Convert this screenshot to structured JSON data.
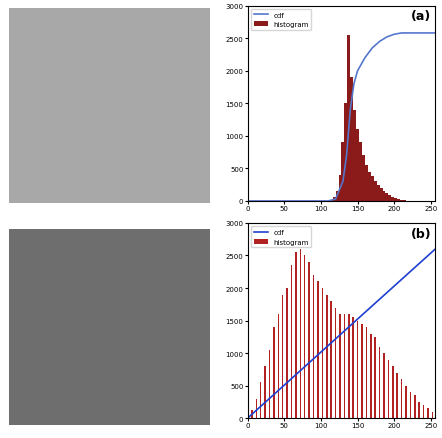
{
  "chart_data": [
    {
      "type": "histogram",
      "annotation": "(a)",
      "legend": "upper left",
      "xlim": [
        0,
        256
      ],
      "xticks": [
        0,
        50,
        100,
        150,
        200,
        250
      ],
      "ylim": [
        0,
        3000
      ],
      "yticks": [
        0,
        500,
        1000,
        1500,
        2000,
        2500,
        3000
      ],
      "series": [
        {
          "name": "cdf",
          "type": "line",
          "color": "#5577cc",
          "x": [
            0,
            110,
            120,
            130,
            135,
            140,
            145,
            150,
            160,
            170,
            180,
            190,
            200,
            210,
            220,
            256
          ],
          "values": [
            0,
            0,
            30,
            300,
            700,
            1400,
            1800,
            2000,
            2200,
            2350,
            2450,
            2520,
            2560,
            2580,
            2580,
            2580
          ]
        },
        {
          "name": "histogram",
          "type": "histogram",
          "color": "#8b1a1a",
          "bins": [
            112,
            116,
            120,
            124,
            128,
            132,
            136,
            140,
            144,
            148,
            152,
            156,
            160,
            164,
            168,
            172,
            176,
            180,
            184,
            188,
            192,
            196,
            200,
            204,
            208,
            212,
            216
          ],
          "values": [
            20,
            60,
            150,
            400,
            900,
            1500,
            2550,
            1900,
            1400,
            1100,
            900,
            700,
            550,
            450,
            380,
            300,
            250,
            200,
            150,
            120,
            90,
            60,
            40,
            25,
            15,
            10
          ]
        }
      ]
    },
    {
      "type": "bar",
      "annotation": "(b)",
      "legend": "upper left",
      "xlim": [
        0,
        256
      ],
      "xticks": [
        0,
        50,
        100,
        150,
        200,
        250
      ],
      "ylim": [
        0,
        3000
      ],
      "yticks": [
        0,
        500,
        1000,
        1500,
        2000,
        2500,
        3000
      ],
      "series": [
        {
          "name": "cdf",
          "type": "line",
          "color": "#1f3fd0",
          "x": [
            0,
            256
          ],
          "values": [
            0,
            2600
          ]
        },
        {
          "name": "histogram",
          "type": "bar",
          "color": "#b22222",
          "x": [
            0,
            6,
            12,
            18,
            24,
            30,
            36,
            42,
            48,
            54,
            60,
            66,
            72,
            78,
            84,
            90,
            96,
            102,
            108,
            114,
            120,
            126,
            132,
            138,
            144,
            150,
            156,
            162,
            168,
            174,
            180,
            186,
            192,
            198,
            204,
            210,
            216,
            222,
            228,
            234,
            240,
            246,
            252
          ],
          "values": [
            50,
            120,
            300,
            550,
            800,
            1050,
            1400,
            1600,
            1900,
            2000,
            2350,
            2550,
            2600,
            2500,
            2400,
            2200,
            2100,
            2000,
            1900,
            1800,
            1700,
            1600,
            1600,
            1600,
            1550,
            1500,
            1450,
            1400,
            1300,
            1250,
            1100,
            1000,
            900,
            800,
            700,
            600,
            500,
            400,
            350,
            250,
            200,
            150,
            100
          ]
        }
      ]
    }
  ]
}
